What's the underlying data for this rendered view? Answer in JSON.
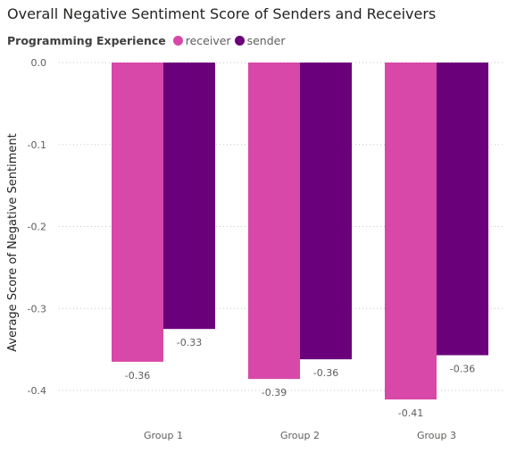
{
  "chart_data": {
    "type": "bar",
    "title": "Overall Negative Sentiment Score of Senders and Receivers",
    "legend_title": "Programming Experience",
    "legend_position": "top-left",
    "xlabel": "",
    "ylabel": "Average Score of Negative Sentiment",
    "categories": [
      "Group 1",
      "Group 2",
      "Group 3"
    ],
    "yticks": [
      "0.0",
      "-0.1",
      "-0.2",
      "-0.3",
      "-0.4"
    ],
    "ylim": [
      -0.4,
      0.0
    ],
    "grid": true,
    "series": [
      {
        "name": "receiver",
        "color": "#d748a8",
        "values": [
          -0.365,
          -0.386,
          -0.411
        ],
        "labels": [
          "-0.36",
          "-0.39",
          "-0.41"
        ]
      },
      {
        "name": "sender",
        "color": "#6b007b",
        "values": [
          -0.325,
          -0.362,
          -0.357
        ],
        "labels": [
          "-0.33",
          "-0.36",
          "-0.36"
        ]
      }
    ]
  }
}
